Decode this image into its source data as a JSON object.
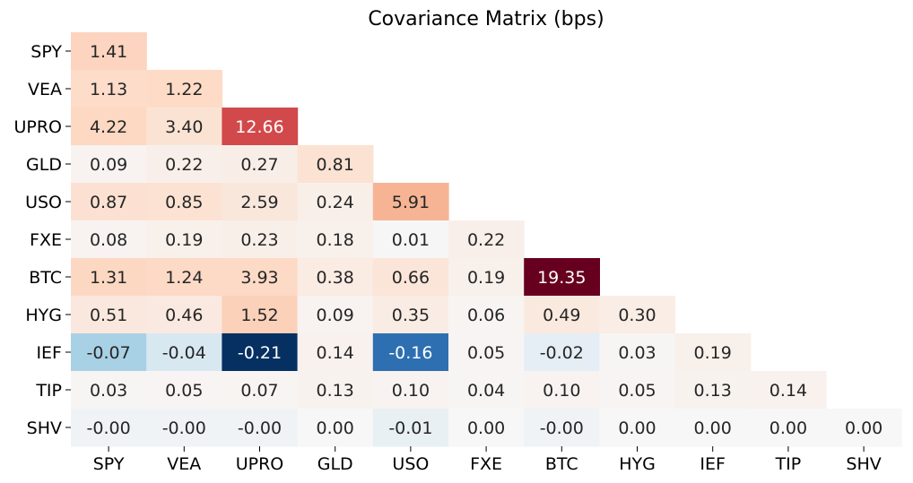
{
  "chart_data": {
    "type": "heatmap",
    "title": "Covariance Matrix (bps)",
    "xlabel": "",
    "ylabel": "",
    "labels": [
      "SPY",
      "VEA",
      "UPRO",
      "GLD",
      "USO",
      "FXE",
      "BTC",
      "HYG",
      "IEF",
      "TIP",
      "SHV"
    ],
    "values": [
      [
        1.41,
        null,
        null,
        null,
        null,
        null,
        null,
        null,
        null,
        null,
        null
      ],
      [
        1.13,
        1.22,
        null,
        null,
        null,
        null,
        null,
        null,
        null,
        null,
        null
      ],
      [
        4.22,
        3.4,
        12.66,
        null,
        null,
        null,
        null,
        null,
        null,
        null,
        null
      ],
      [
        0.09,
        0.22,
        0.27,
        0.81,
        null,
        null,
        null,
        null,
        null,
        null,
        null
      ],
      [
        0.87,
        0.85,
        2.59,
        0.24,
        5.91,
        null,
        null,
        null,
        null,
        null,
        null
      ],
      [
        0.08,
        0.19,
        0.23,
        0.18,
        0.01,
        0.22,
        null,
        null,
        null,
        null,
        null
      ],
      [
        1.31,
        1.24,
        3.93,
        0.38,
        0.66,
        0.19,
        19.35,
        null,
        null,
        null,
        null
      ],
      [
        0.51,
        0.46,
        1.52,
        0.09,
        0.35,
        0.06,
        0.49,
        0.3,
        null,
        null,
        null
      ],
      [
        -0.07,
        -0.04,
        -0.21,
        0.14,
        -0.16,
        0.05,
        -0.02,
        0.03,
        0.19,
        null,
        null
      ],
      [
        0.03,
        0.05,
        0.07,
        0.13,
        0.1,
        0.04,
        0.1,
        0.05,
        0.13,
        0.14,
        null
      ],
      [
        -0.004,
        -0.004,
        -0.004,
        0.0,
        -0.01,
        0.0,
        -0.004,
        0.0,
        0.0,
        0.0,
        0.0
      ]
    ],
    "display": [
      [
        "1.41",
        null,
        null,
        null,
        null,
        null,
        null,
        null,
        null,
        null,
        null
      ],
      [
        "1.13",
        "1.22",
        null,
        null,
        null,
        null,
        null,
        null,
        null,
        null,
        null
      ],
      [
        "4.22",
        "3.40",
        "12.66",
        null,
        null,
        null,
        null,
        null,
        null,
        null,
        null
      ],
      [
        "0.09",
        "0.22",
        "0.27",
        "0.81",
        null,
        null,
        null,
        null,
        null,
        null,
        null
      ],
      [
        "0.87",
        "0.85",
        "2.59",
        "0.24",
        "5.91",
        null,
        null,
        null,
        null,
        null,
        null
      ],
      [
        "0.08",
        "0.19",
        "0.23",
        "0.18",
        "0.01",
        "0.22",
        null,
        null,
        null,
        null,
        null
      ],
      [
        "1.31",
        "1.24",
        "3.93",
        "0.38",
        "0.66",
        "0.19",
        "19.35",
        null,
        null,
        null,
        null
      ],
      [
        "0.51",
        "0.46",
        "1.52",
        "0.09",
        "0.35",
        "0.06",
        "0.49",
        "0.30",
        null,
        null,
        null
      ],
      [
        "-0.07",
        "-0.04",
        "-0.21",
        "0.14",
        "-0.16",
        "0.05",
        "-0.02",
        "0.03",
        "0.19",
        null,
        null
      ],
      [
        "0.03",
        "0.05",
        "0.07",
        "0.13",
        "0.10",
        "0.04",
        "0.10",
        "0.05",
        "0.13",
        "0.14",
        null
      ],
      [
        "-0.00",
        "-0.00",
        "-0.00",
        "0.00",
        "-0.01",
        "0.00",
        "-0.00",
        "0.00",
        "0.00",
        "0.00",
        "0.00"
      ]
    ],
    "colormap": "RdBu_r",
    "colorbar": false,
    "mask": "upper-triangle",
    "colors": {
      "UPRO-UPRO": "#d1494b",
      "BTC-BTC": "#67001f",
      "IEF-UPRO": "#053061",
      "IEF-USO": "#2d6fb1",
      "IEF-SPY": "#a9d1e5",
      "IEF-VEA": "#d8e8f1",
      "IEF-BTC": "#e4eef4",
      "USO-USO": "#f6b494",
      "UPRO-SPY": "#fdd8c2",
      "UPRO-VEA": "#fbe3d4",
      "BTC-UPRO": "#fcdac6",
      "USO-UPRO": "#f9e7dc",
      "neutral": "#f7f7f7"
    }
  }
}
